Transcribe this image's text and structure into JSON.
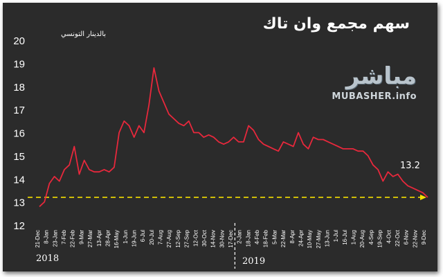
{
  "title": "سهم مجمع وان تاك",
  "unit_label": "بالدينار التونسي",
  "logo": {
    "arabic": "مباشر",
    "latin": "MUBASHER.info"
  },
  "years": [
    "2018",
    "2019"
  ],
  "last_value_label": "13.2",
  "colors": {
    "background": "#2b2b2b",
    "line": "#e8283c",
    "reference_line": "#f5e000",
    "text": "#ffffff",
    "divider": "#ffffff"
  },
  "chart_data": {
    "type": "line",
    "title": "سهم مجمع وان تاك",
    "ylabel": "بالدينار التونسي",
    "ylim": [
      12,
      20
    ],
    "y_ticks": [
      12,
      13,
      14,
      15,
      16,
      17,
      18,
      19,
      20
    ],
    "grid": false,
    "x_tick_labels": [
      "21-Dec",
      "8-Jan",
      "23-Jan",
      "7-Feb",
      "22-Feb",
      "9-Mar",
      "27-Mar",
      "13-Apr",
      "28-Apr",
      "16-May",
      "1-Jun",
      "19-Jun",
      "6-Jul",
      "20-Jul",
      "7-Aug",
      "27-Aug",
      "12-Sep",
      "27-Sep",
      "12-Oct",
      "30-Oct",
      "14-Nov",
      "30-Nov",
      "17-Dec",
      "2-Jan",
      "18-Jan",
      "4-Feb",
      "18-Feb",
      "5-Mar",
      "22-Mar",
      "8-Apr",
      "24-Apr",
      "10-May",
      "27-May",
      "13-Jun",
      "1-Jul",
      "16-Jul",
      "1-Aug",
      "20-Aug",
      "4-Sep",
      "19-Sep",
      "4-Oct",
      "22-Oct",
      "6-Nov",
      "22-Nov",
      "9-Dec"
    ],
    "reference_line": {
      "y": 13.2,
      "style": "dashed-arrow"
    },
    "year_divider_after_tick": "17-Dec",
    "series": [
      {
        "values": [
          12.8,
          13.0,
          13.8,
          14.1,
          13.9,
          14.4,
          14.6,
          15.4,
          14.2,
          14.8,
          14.4,
          14.3,
          14.3,
          14.4,
          14.3,
          14.5,
          16.0,
          16.5,
          16.3,
          15.8,
          16.3,
          16.0,
          17.2,
          18.8,
          17.8,
          17.3,
          16.8,
          16.6,
          16.4,
          16.3,
          16.5,
          16.0,
          16.0,
          15.8,
          15.9,
          15.8,
          15.6,
          15.5,
          15.6,
          15.8,
          15.6,
          15.6,
          16.3,
          16.1,
          15.7,
          15.5,
          15.4,
          15.3,
          15.2,
          15.6,
          15.5,
          15.4,
          16.0,
          15.5,
          15.3,
          15.8,
          15.7,
          15.7,
          15.6,
          15.5,
          15.4,
          15.3,
          15.3,
          15.3,
          15.2,
          15.2,
          15.0,
          14.6,
          14.4,
          13.9,
          14.3,
          14.1,
          14.2,
          13.9,
          13.7,
          13.6,
          13.5,
          13.4,
          13.2
        ]
      }
    ]
  }
}
